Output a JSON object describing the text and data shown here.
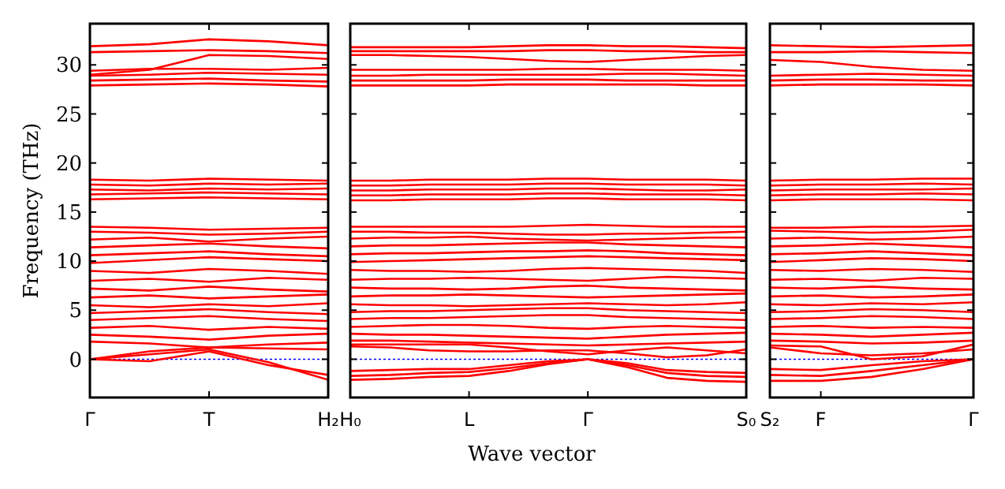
{
  "chart_data": [
    {
      "type": "line",
      "ylabel": "Frequency (THz)",
      "categories": [
        "Γ",
        null,
        "T",
        null,
        "H₂"
      ],
      "ylim": [
        -3.9,
        34.2
      ],
      "yticks": [
        0,
        5,
        10,
        15,
        20,
        25,
        30
      ],
      "ref_lines": [
        {
          "axis": "y",
          "value": 0,
          "color": "#0000ff",
          "line_style": "dotted"
        }
      ],
      "series": [
        {
          "color": "#ff0000",
          "values": [
            0,
            -0.2,
            0.8,
            -0.6,
            -1.6
          ]
        },
        {
          "color": "#ff0000",
          "values": [
            0,
            0.5,
            1.0,
            -0.3,
            -2.1
          ]
        },
        {
          "color": "#ff0000",
          "values": [
            0,
            0.8,
            1.2,
            1.1,
            1.0
          ]
        },
        {
          "color": "#ff0000",
          "values": [
            1.8,
            1.6,
            1.2,
            1.5,
            1.7
          ]
        },
        {
          "color": "#ff0000",
          "values": [
            2.5,
            2.3,
            2.0,
            2.4,
            2.6
          ]
        },
        {
          "color": "#ff0000",
          "values": [
            3.2,
            3.4,
            3.0,
            3.3,
            3.1
          ]
        },
        {
          "color": "#ff0000",
          "values": [
            4.0,
            4.2,
            4.4,
            4.1,
            3.9
          ]
        },
        {
          "color": "#ff0000",
          "values": [
            4.7,
            4.9,
            5.1,
            4.8,
            4.6
          ]
        },
        {
          "color": "#ff0000",
          "values": [
            5.5,
            5.3,
            5.6,
            5.4,
            5.7
          ]
        },
        {
          "color": "#ff0000",
          "values": [
            6.3,
            6.5,
            6.2,
            6.4,
            6.6
          ]
        },
        {
          "color": "#ff0000",
          "values": [
            7.2,
            7.0,
            7.4,
            7.1,
            6.9
          ]
        },
        {
          "color": "#ff0000",
          "values": [
            8.0,
            8.2,
            7.9,
            8.3,
            8.1
          ]
        },
        {
          "color": "#ff0000",
          "values": [
            9.0,
            8.8,
            9.2,
            9.0,
            8.7
          ]
        },
        {
          "color": "#ff0000",
          "values": [
            9.8,
            10.1,
            10.4,
            10.2,
            10.0
          ]
        },
        {
          "color": "#ff0000",
          "values": [
            10.6,
            10.8,
            11.0,
            10.7,
            10.5
          ]
        },
        {
          "color": "#ff0000",
          "values": [
            11.4,
            11.6,
            11.8,
            11.5,
            11.3
          ]
        },
        {
          "color": "#ff0000",
          "values": [
            12.2,
            12.4,
            12.0,
            12.3,
            12.5
          ]
        },
        {
          "color": "#ff0000",
          "values": [
            13.0,
            12.9,
            12.7,
            12.8,
            13.0
          ]
        },
        {
          "color": "#ff0000",
          "values": [
            13.5,
            13.4,
            13.2,
            13.3,
            13.4
          ]
        },
        {
          "color": "#ff0000",
          "values": [
            16.3,
            16.4,
            16.5,
            16.4,
            16.3
          ]
        },
        {
          "color": "#ff0000",
          "values": [
            16.8,
            16.9,
            17.0,
            16.9,
            16.8
          ]
        },
        {
          "color": "#ff0000",
          "values": [
            17.3,
            17.2,
            17.4,
            17.3,
            17.4
          ]
        },
        {
          "color": "#ff0000",
          "values": [
            17.8,
            17.7,
            17.9,
            17.8,
            17.9
          ]
        },
        {
          "color": "#ff0000",
          "values": [
            18.3,
            18.2,
            18.4,
            18.3,
            18.2
          ]
        },
        {
          "color": "#ff0000",
          "values": [
            27.9,
            28.0,
            28.1,
            28.0,
            27.8
          ]
        },
        {
          "color": "#ff0000",
          "values": [
            28.4,
            28.5,
            28.6,
            28.4,
            28.3
          ]
        },
        {
          "color": "#ff0000",
          "values": [
            28.9,
            29.0,
            29.2,
            29.1,
            29.0
          ]
        },
        {
          "color": "#ff0000",
          "values": [
            29.4,
            29.6,
            29.6,
            29.5,
            29.7
          ]
        },
        {
          "color": "#ff0000",
          "values": [
            29.0,
            29.5,
            31.0,
            30.9,
            30.6
          ]
        },
        {
          "color": "#ff0000",
          "values": [
            31.3,
            31.4,
            31.5,
            31.4,
            31.2
          ]
        },
        {
          "color": "#ff0000",
          "values": [
            31.9,
            32.1,
            32.6,
            32.4,
            32.0
          ]
        }
      ]
    },
    {
      "type": "line",
      "xlabel": "Wave vector",
      "categories": [
        "H₀",
        null,
        null,
        "L",
        null,
        null,
        "Γ",
        null,
        null,
        null,
        "S₀"
      ],
      "ylim": [
        -3.9,
        34.2
      ],
      "yticks": [
        0,
        5,
        10,
        15,
        20,
        25,
        30
      ],
      "tick_labels": "x",
      "ref_lines": [
        {
          "axis": "y",
          "value": 0,
          "color": "#0000ff",
          "line_style": "dotted"
        }
      ],
      "series": [
        {
          "color": "#ff0000",
          "values": [
            -1.7,
            -1.6,
            -1.4,
            -1.3,
            -0.9,
            -0.4,
            0,
            -0.6,
            -1.4,
            -1.7,
            -1.8
          ]
        },
        {
          "color": "#ff0000",
          "values": [
            -2.1,
            -2.0,
            -1.8,
            -1.7,
            -1.2,
            -0.5,
            0,
            -0.8,
            -1.9,
            -2.2,
            -2.3
          ]
        },
        {
          "color": "#ff0000",
          "values": [
            -1.2,
            -1.1,
            -1.0,
            -1.0,
            -0.6,
            -0.2,
            0,
            -0.4,
            -1.1,
            -1.3,
            -1.4
          ]
        },
        {
          "color": "#ff0000",
          "values": [
            1.3,
            1.2,
            0.9,
            0.8,
            0.8,
            0.9,
            0.9,
            0.6,
            0.2,
            0.4,
            1.0
          ]
        },
        {
          "color": "#ff0000",
          "values": [
            1.5,
            1.5,
            1.5,
            1.5,
            1.2,
            0.8,
            0.5,
            0.9,
            1.2,
            0.9,
            0.6
          ]
        },
        {
          "color": "#ff0000",
          "values": [
            1.9,
            1.9,
            1.8,
            1.7,
            1.6,
            1.5,
            1.4,
            1.5,
            1.6,
            1.7,
            1.8
          ]
        },
        {
          "color": "#ff0000",
          "values": [
            2.6,
            2.5,
            2.5,
            2.4,
            2.3,
            2.2,
            2.1,
            2.3,
            2.5,
            2.6,
            2.7
          ]
        },
        {
          "color": "#ff0000",
          "values": [
            3.3,
            3.4,
            3.5,
            3.5,
            3.4,
            3.2,
            3.1,
            3.3,
            3.4,
            3.3,
            3.2
          ]
        },
        {
          "color": "#ff0000",
          "values": [
            4.1,
            4.2,
            4.2,
            4.3,
            4.4,
            4.5,
            4.5,
            4.3,
            4.2,
            4.1,
            4.0
          ]
        },
        {
          "color": "#ff0000",
          "values": [
            4.8,
            4.9,
            4.9,
            5.0,
            5.1,
            5.2,
            5.2,
            5.0,
            4.9,
            4.8,
            4.7
          ]
        },
        {
          "color": "#ff0000",
          "values": [
            5.6,
            5.5,
            5.5,
            5.4,
            5.5,
            5.6,
            5.7,
            5.6,
            5.5,
            5.6,
            5.8
          ]
        },
        {
          "color": "#ff0000",
          "values": [
            6.4,
            6.5,
            6.5,
            6.6,
            6.5,
            6.4,
            6.3,
            6.4,
            6.5,
            6.6,
            6.7
          ]
        },
        {
          "color": "#ff0000",
          "values": [
            7.3,
            7.2,
            7.2,
            7.1,
            7.2,
            7.4,
            7.5,
            7.3,
            7.2,
            7.1,
            7.0
          ]
        },
        {
          "color": "#ff0000",
          "values": [
            8.1,
            8.2,
            8.2,
            8.3,
            8.2,
            8.1,
            8.0,
            8.2,
            8.4,
            8.3,
            8.2
          ]
        },
        {
          "color": "#ff0000",
          "values": [
            9.1,
            9.0,
            9.0,
            8.9,
            9.0,
            9.2,
            9.3,
            9.2,
            9.1,
            9.0,
            8.8
          ]
        },
        {
          "color": "#ff0000",
          "values": [
            9.9,
            10.0,
            10.1,
            10.2,
            10.3,
            10.4,
            10.5,
            10.4,
            10.3,
            10.2,
            10.1
          ]
        },
        {
          "color": "#ff0000",
          "values": [
            10.7,
            10.8,
            10.8,
            10.9,
            11.0,
            11.0,
            11.1,
            11.0,
            10.8,
            10.7,
            10.6
          ]
        },
        {
          "color": "#ff0000",
          "values": [
            11.5,
            11.6,
            11.6,
            11.7,
            11.8,
            11.9,
            11.9,
            11.7,
            11.6,
            11.5,
            11.4
          ]
        },
        {
          "color": "#ff0000",
          "values": [
            12.3,
            12.4,
            12.4,
            12.5,
            12.3,
            12.2,
            12.1,
            12.2,
            12.3,
            12.4,
            12.4
          ]
        },
        {
          "color": "#ff0000",
          "values": [
            13.0,
            13.0,
            12.9,
            12.9,
            12.8,
            12.7,
            12.7,
            12.8,
            12.8,
            12.9,
            13.0
          ]
        },
        {
          "color": "#ff0000",
          "values": [
            13.5,
            13.5,
            13.5,
            13.5,
            13.5,
            13.6,
            13.7,
            13.6,
            13.5,
            13.5,
            13.5
          ]
        },
        {
          "color": "#ff0000",
          "values": [
            16.2,
            16.2,
            16.3,
            16.3,
            16.3,
            16.4,
            16.4,
            16.3,
            16.3,
            16.3,
            16.2
          ]
        },
        {
          "color": "#ff0000",
          "values": [
            16.7,
            16.7,
            16.8,
            16.8,
            16.8,
            16.9,
            16.9,
            16.8,
            16.8,
            16.8,
            16.7
          ]
        },
        {
          "color": "#ff0000",
          "values": [
            17.2,
            17.2,
            17.3,
            17.3,
            17.3,
            17.4,
            17.4,
            17.3,
            17.2,
            17.2,
            17.3
          ]
        },
        {
          "color": "#ff0000",
          "values": [
            17.7,
            17.7,
            17.8,
            17.8,
            17.8,
            17.9,
            17.9,
            17.8,
            17.8,
            17.8,
            17.7
          ]
        },
        {
          "color": "#ff0000",
          "values": [
            18.2,
            18.2,
            18.3,
            18.3,
            18.3,
            18.4,
            18.4,
            18.3,
            18.3,
            18.3,
            18.2
          ]
        },
        {
          "color": "#ff0000",
          "values": [
            27.9,
            27.9,
            27.9,
            27.9,
            28.0,
            28.0,
            28.0,
            28.0,
            28.0,
            27.9,
            27.9
          ]
        },
        {
          "color": "#ff0000",
          "values": [
            28.4,
            28.4,
            28.4,
            28.4,
            28.5,
            28.5,
            28.5,
            28.4,
            28.4,
            28.4,
            28.4
          ]
        },
        {
          "color": "#ff0000",
          "values": [
            28.9,
            28.9,
            29.0,
            29.0,
            29.0,
            29.0,
            29.0,
            29.1,
            29.1,
            29.0,
            28.9
          ]
        },
        {
          "color": "#ff0000",
          "values": [
            29.5,
            29.5,
            29.5,
            29.5,
            29.5,
            29.6,
            29.6,
            29.5,
            29.5,
            29.5,
            29.4
          ]
        },
        {
          "color": "#ff0000",
          "values": [
            31.0,
            31.0,
            30.9,
            30.8,
            30.6,
            30.4,
            30.3,
            30.5,
            30.7,
            30.9,
            31.0
          ]
        },
        {
          "color": "#ff0000",
          "values": [
            31.4,
            31.4,
            31.4,
            31.4,
            31.4,
            31.5,
            31.5,
            31.4,
            31.4,
            31.3,
            31.3
          ]
        },
        {
          "color": "#ff0000",
          "values": [
            31.8,
            31.8,
            31.8,
            31.8,
            31.9,
            32.0,
            32.0,
            31.9,
            31.9,
            31.8,
            31.7
          ]
        }
      ]
    },
    {
      "type": "line",
      "categories": [
        "S₂",
        "F",
        null,
        null,
        "Γ"
      ],
      "ylim": [
        -3.9,
        34.2
      ],
      "yticks": [
        0,
        5,
        10,
        15,
        20,
        25,
        30
      ],
      "tick_labels": "x",
      "ref_lines": [
        {
          "axis": "y",
          "value": 0,
          "color": "#0000ff",
          "line_style": "dotted"
        }
      ],
      "series": [
        {
          "color": "#ff0000",
          "values": [
            -1.6,
            -1.7,
            -1.2,
            -0.6,
            0
          ]
        },
        {
          "color": "#ff0000",
          "values": [
            -2.2,
            -2.2,
            -1.8,
            -1.0,
            0
          ]
        },
        {
          "color": "#ff0000",
          "values": [
            -1.0,
            -1.1,
            -0.6,
            -0.2,
            0
          ]
        },
        {
          "color": "#ff0000",
          "values": [
            1.2,
            0.6,
            0.4,
            0.6,
            1.0
          ]
        },
        {
          "color": "#ff0000",
          "values": [
            1.4,
            1.3,
            0,
            0.3,
            1.5
          ]
        },
        {
          "color": "#ff0000",
          "values": [
            1.9,
            1.8,
            1.6,
            1.7,
            1.9
          ]
        },
        {
          "color": "#ff0000",
          "values": [
            2.6,
            2.5,
            2.3,
            2.5,
            2.7
          ]
        },
        {
          "color": "#ff0000",
          "values": [
            3.3,
            3.4,
            3.2,
            3.3,
            3.2
          ]
        },
        {
          "color": "#ff0000",
          "values": [
            4.1,
            4.2,
            4.4,
            4.3,
            4.1
          ]
        },
        {
          "color": "#ff0000",
          "values": [
            4.8,
            4.9,
            5.1,
            5.0,
            4.8
          ]
        },
        {
          "color": "#ff0000",
          "values": [
            5.6,
            5.5,
            5.7,
            5.6,
            5.8
          ]
        },
        {
          "color": "#ff0000",
          "values": [
            6.4,
            6.5,
            6.3,
            6.4,
            6.6
          ]
        },
        {
          "color": "#ff0000",
          "values": [
            7.3,
            7.2,
            7.4,
            7.2,
            7.1
          ]
        },
        {
          "color": "#ff0000",
          "values": [
            8.1,
            8.2,
            8.0,
            8.3,
            8.2
          ]
        },
        {
          "color": "#ff0000",
          "values": [
            9.1,
            9.0,
            9.2,
            9.1,
            8.9
          ]
        },
        {
          "color": "#ff0000",
          "values": [
            9.9,
            10.1,
            10.3,
            10.2,
            10.0
          ]
        },
        {
          "color": "#ff0000",
          "values": [
            10.7,
            10.8,
            11.0,
            10.8,
            10.6
          ]
        },
        {
          "color": "#ff0000",
          "values": [
            11.5,
            11.6,
            11.8,
            11.6,
            11.4
          ]
        },
        {
          "color": "#ff0000",
          "values": [
            12.3,
            12.4,
            12.2,
            12.3,
            12.5
          ]
        },
        {
          "color": "#ff0000",
          "values": [
            13.1,
            13.0,
            12.9,
            13.0,
            13.2
          ]
        },
        {
          "color": "#ff0000",
          "values": [
            13.4,
            13.4,
            13.5,
            13.5,
            13.6
          ]
        },
        {
          "color": "#ff0000",
          "values": [
            16.2,
            16.3,
            16.3,
            16.3,
            16.2
          ]
        },
        {
          "color": "#ff0000",
          "values": [
            16.7,
            16.8,
            16.8,
            16.9,
            16.8
          ]
        },
        {
          "color": "#ff0000",
          "values": [
            17.2,
            17.3,
            17.3,
            17.3,
            17.4
          ]
        },
        {
          "color": "#ff0000",
          "values": [
            17.7,
            17.8,
            17.8,
            17.9,
            17.8
          ]
        },
        {
          "color": "#ff0000",
          "values": [
            18.2,
            18.3,
            18.3,
            18.4,
            18.4
          ]
        },
        {
          "color": "#ff0000",
          "values": [
            27.9,
            28.0,
            28.0,
            28.0,
            27.9
          ]
        },
        {
          "color": "#ff0000",
          "values": [
            28.4,
            28.5,
            28.5,
            28.4,
            28.4
          ]
        },
        {
          "color": "#ff0000",
          "values": [
            28.9,
            29.0,
            29.1,
            29.0,
            28.9
          ]
        },
        {
          "color": "#ff0000",
          "values": [
            30.5,
            30.3,
            29.8,
            29.5,
            29.4
          ]
        },
        {
          "color": "#ff0000",
          "values": [
            31.3,
            31.3,
            31.4,
            31.3,
            31.2
          ]
        },
        {
          "color": "#ff0000",
          "values": [
            32.0,
            31.9,
            31.8,
            31.9,
            32.0
          ]
        }
      ]
    }
  ]
}
